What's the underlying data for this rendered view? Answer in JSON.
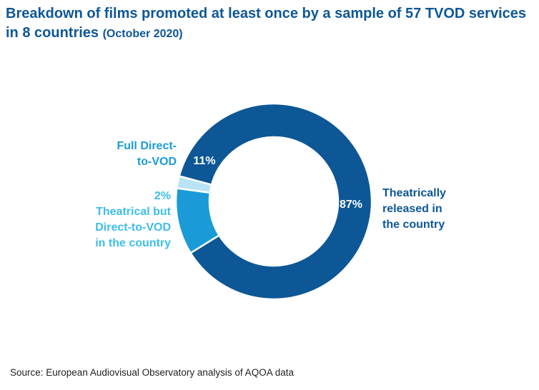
{
  "title": {
    "main": "Breakdown of films promoted at least once by a sample of 57 TVOD services in 8 countries",
    "period": "(October 2020)"
  },
  "chart_data": {
    "type": "donut",
    "slices": [
      {
        "name": "Theatrically released in the country",
        "label_lines": [
          "Theatrically",
          "released in",
          "the country"
        ],
        "value": 87,
        "display": "87%",
        "color": "#0d5796"
      },
      {
        "name": "Full Direct-to-VOD",
        "label_lines": [
          "Full Direct-",
          "to-VOD"
        ],
        "value": 11,
        "display": "11%",
        "color": "#1a9bd7"
      },
      {
        "name": "Theatrical but Direct-to-VOD in the country",
        "label_lines": [
          "Theatrical but",
          "Direct-to-VOD",
          "in the country"
        ],
        "value": 2,
        "display": "2%",
        "color": "#b9e4f6"
      }
    ],
    "label_colors": {
      "Theatrically released in the country": "#0d5796",
      "Full Direct-to-VOD": "#1a9bd7",
      "Theatrical but Direct-to-VOD in the country": "#3cbfe8"
    }
  },
  "source": "Source: European Audiovisual Observatory analysis of AQOA data"
}
